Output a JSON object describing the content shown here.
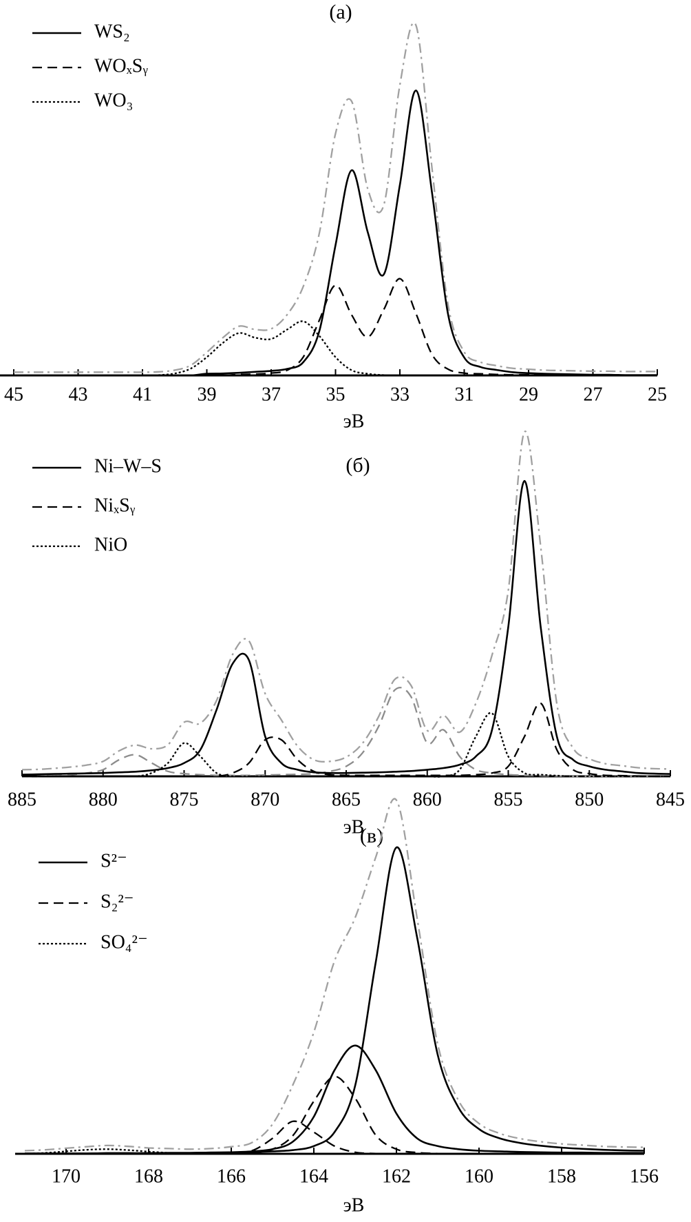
{
  "chart_data": [
    {
      "type": "line",
      "title": "(а)",
      "xlabel": "эВ",
      "legend": "upper left",
      "x": [
        45,
        44.5,
        44,
        43.5,
        43,
        42.5,
        42,
        41.5,
        41,
        40.5,
        40,
        39.5,
        39,
        38.5,
        38,
        37.5,
        37,
        36.5,
        36,
        35.5,
        35,
        34.5,
        34,
        33.5,
        33,
        32.5,
        32,
        31.5,
        31,
        30.5,
        30,
        29.5,
        29,
        28.5,
        28,
        27.5,
        27,
        26.5,
        26,
        25.5,
        25
      ],
      "xlim": [
        45,
        25
      ],
      "xticks": [
        45,
        43,
        41,
        39,
        37,
        35,
        33,
        31,
        29,
        27,
        25
      ],
      "ylim": [
        0,
        110
      ],
      "series": [
        {
          "color": "#a0a0a0",
          "dash": "dashdot",
          "values": [
            1,
            1,
            1,
            1,
            1,
            1,
            1,
            1,
            1,
            1.1,
            1.6,
            3.1,
            7.1,
            11.6,
            15.1,
            14.1,
            14.3,
            18.7,
            27.4,
            43.8,
            74.3,
            84.2,
            57.3,
            52.3,
            89.2,
            107.5,
            63.4,
            21.6,
            7.2,
            4.1,
            3,
            2.2,
            1.9,
            1.6,
            1.5,
            1.4,
            1.3,
            1.3,
            1.2,
            1.2,
            1.2
          ]
        },
        {
          "name": "WS₂",
          "color": "#000000",
          "dash": "solid",
          "values": [
            0,
            0,
            0,
            0,
            0,
            0,
            0,
            0,
            0,
            0,
            0,
            0,
            0.5,
            0.6,
            0.8,
            1.1,
            1.4,
            2.0,
            4.1,
            13.7,
            40,
            63,
            44,
            31,
            58.5,
            87.5,
            56,
            18.7,
            5.5,
            2.6,
            1.7,
            1.0,
            0.7,
            0.5,
            0.4,
            0.3,
            0.2,
            0.2,
            0.1,
            0.1,
            0.1
          ]
        },
        {
          "name": "WOₓSᵧ",
          "color": "#000000",
          "dash": "dashed",
          "values": [
            0,
            0,
            0,
            0,
            0,
            0,
            0,
            0,
            0,
            0,
            0,
            0,
            0,
            0,
            0.3,
            0.4,
            0.7,
            1.6,
            5.7,
            17,
            27.7,
            18.6,
            11.8,
            20.2,
            29.7,
            19,
            6.4,
            1.9,
            0.7,
            0.5,
            0.3,
            0.2,
            0.2,
            0.1,
            0.1,
            0.1,
            0.1,
            0,
            0,
            0,
            0
          ]
        },
        {
          "name": "WO₃",
          "color": "#000000",
          "dash": "dotted",
          "values": [
            0,
            0,
            0,
            0,
            0,
            0,
            0,
            0,
            0,
            0.1,
            0.6,
            2.1,
            5.6,
            10,
            13,
            11.6,
            11.2,
            14.1,
            16.6,
            12.1,
            5.6,
            1.6,
            0.5,
            0.1,
            0,
            0,
            0,
            0,
            0,
            0,
            0,
            0,
            0,
            0,
            0,
            0,
            0,
            0,
            0,
            0,
            0
          ]
        }
      ]
    },
    {
      "type": "line",
      "title": "(б)",
      "xlabel": "эВ",
      "legend": "upper left",
      "x": [
        885,
        884,
        883,
        882,
        881,
        880,
        879,
        878,
        877,
        876,
        875,
        874,
        873,
        872,
        871,
        870,
        869,
        868,
        867,
        866,
        865,
        864,
        863,
        862,
        861,
        860,
        859,
        858,
        857,
        856,
        855,
        854,
        853,
        852,
        851,
        850,
        849,
        848,
        847,
        846,
        845
      ],
      "xlim": [
        885,
        845
      ],
      "xticks": [
        885,
        880,
        875,
        870,
        865,
        860,
        855,
        850,
        845
      ],
      "ylim": [
        0,
        110
      ],
      "series": [
        {
          "color": "#a0a0a0",
          "dash": "dashdot",
          "values": [
            2,
            2.1,
            2.4,
            2.8,
            3.4,
            4.5,
            7.7,
            9.4,
            8.3,
            9.5,
            16.3,
            16,
            22.8,
            36.8,
            40.8,
            24.9,
            17,
            9.1,
            5,
            4.5,
            5.8,
            9.9,
            18,
            29.2,
            27.4,
            13.8,
            18.3,
            13.3,
            22,
            36.5,
            56,
            103.8,
            69.2,
            21.8,
            8.5,
            5.3,
            3.8,
            3.2,
            2.6,
            2.3,
            2.2
          ]
        },
        {
          "color": "#8c8c8c",
          "dash": "dashed",
          "values": [
            0,
            0,
            0.2,
            0.5,
            1,
            2,
            5,
            6.5,
            4,
            1.5,
            0.8,
            0.5,
            0.3,
            0.3,
            0.3,
            0.4,
            0.5,
            0.6,
            0.8,
            1.5,
            3,
            7,
            15,
            26,
            24,
            10,
            14,
            6,
            2,
            1,
            0.5,
            0.3,
            0.2,
            0.1,
            0,
            0,
            0,
            0,
            0,
            0,
            0
          ]
        },
        {
          "name": "Ni–W–S",
          "color": "#000000",
          "dash": "solid",
          "values": [
            0.5,
            0.6,
            0.7,
            0.8,
            0.9,
            1,
            1.2,
            1.4,
            1.8,
            2.5,
            4,
            8,
            20,
            34,
            35,
            12,
            4,
            2,
            1.2,
            1,
            1,
            1.1,
            1.2,
            1.4,
            1.6,
            2,
            2.5,
            3.5,
            6,
            14,
            45,
            89,
            45,
            12,
            5,
            3,
            2,
            1.5,
            1,
            0.8,
            0.7
          ]
        },
        {
          "name": "NiₓSᵧ",
          "color": "#000000",
          "dash": "dashed",
          "values": [
            0,
            0,
            0,
            0,
            0,
            0,
            0,
            0,
            0,
            0,
            0,
            0,
            0,
            1,
            4,
            11,
            11,
            5,
            1.5,
            0.5,
            0.3,
            0.3,
            0.3,
            0.3,
            0.3,
            0.3,
            0.3,
            0.3,
            0.5,
            1,
            3,
            12,
            22,
            8,
            2,
            0.8,
            0.3,
            0.2,
            0.1,
            0,
            0
          ]
        },
        {
          "name": "NiO",
          "color": "#000000",
          "dash": "dotted",
          "values": [
            0,
            0,
            0,
            0,
            0,
            0,
            0,
            0,
            1,
            4,
            10,
            6,
            1,
            0,
            0,
            0,
            0,
            0,
            0,
            0,
            0,
            0,
            0,
            0,
            0,
            0,
            0,
            2,
            12,
            19,
            6,
            1,
            0.5,
            0.2,
            0,
            0,
            0,
            0,
            0,
            0,
            0
          ]
        }
      ]
    },
    {
      "type": "line",
      "title": "(в)",
      "xlabel": "эВ",
      "legend": "upper left",
      "x": [
        171,
        170.5,
        170,
        169.5,
        169,
        168.5,
        168,
        167.5,
        167,
        166.5,
        166,
        165.5,
        165,
        164.5,
        164,
        163.5,
        163,
        162.5,
        162,
        161.5,
        161,
        160.5,
        160,
        159.5,
        159,
        158.5,
        158,
        157.5,
        157,
        156.5,
        156
      ],
      "xlim": [
        171,
        156
      ],
      "xticks": [
        170,
        168,
        166,
        164,
        162,
        160,
        158,
        156
      ],
      "ylim": [
        0,
        120
      ],
      "series": [
        {
          "color": "#a0a0a0",
          "dash": "dashdot",
          "values": [
            1.0,
            1.3,
            1.8,
            2.3,
            2.7,
            2.4,
            1.9,
            1.7,
            1.5,
            1.7,
            2.3,
            3.6,
            9.6,
            22.5,
            39.3,
            62.3,
            76.3,
            95.9,
            114.3,
            76.2,
            35.4,
            17.3,
            9.8,
            6.6,
            4.9,
            3.9,
            3.2,
            2.8,
            2.4,
            2.2,
            2.1
          ]
        },
        {
          "name": "S²⁻",
          "color": "#000000",
          "dash": "solid",
          "values": [
            0.1,
            0.1,
            0.1,
            0.1,
            0.2,
            0.2,
            0.2,
            0.3,
            0.3,
            0.4,
            0.5,
            0.6,
            0.8,
            1.2,
            2.5,
            7,
            22,
            62,
            99,
            70,
            32,
            15,
            8,
            5,
            3.5,
            2.6,
            2,
            1.6,
            1.3,
            1.1,
            1
          ]
        },
        {
          "name": "S²⁻",
          "color": "#000000",
          "dash": "solid",
          "values": [
            0.1,
            0.1,
            0.1,
            0.1,
            0.2,
            0.2,
            0.2,
            0.3,
            0.3,
            0.4,
            0.5,
            0.8,
            1.5,
            4,
            12,
            27,
            35,
            27,
            13,
            5,
            2.5,
            1.5,
            1,
            0.8,
            0.6,
            0.5,
            0.4,
            0.4,
            0.3,
            0.3,
            0.3
          ]
        },
        {
          "name": "S₂²⁻",
          "color": "#000000",
          "dash": "dashed",
          "values": [
            0,
            0,
            0,
            0,
            0,
            0,
            0,
            0,
            0,
            0,
            0.1,
            0.4,
            1.5,
            6,
            17,
            25,
            18,
            6,
            1.5,
            0.4,
            0.1,
            0,
            0,
            0,
            0,
            0,
            0,
            0,
            0,
            0,
            0
          ]
        },
        {
          "name": "S₂²⁻",
          "color": "#000000",
          "dash": "dashed",
          "values": [
            0,
            0,
            0,
            0,
            0,
            0,
            0,
            0,
            0,
            0.1,
            0.4,
            1,
            5,
            10.5,
            7,
            2.5,
            0.5,
            0.1,
            0,
            0,
            0,
            0,
            0,
            0,
            0,
            0,
            0,
            0,
            0,
            0,
            0
          ]
        },
        {
          "name": "SO₄²⁻",
          "color": "#000000",
          "dash": "dotted",
          "values": [
            0,
            0.3,
            0.8,
            1.3,
            1.5,
            1.2,
            0.7,
            0.3,
            0.1,
            0,
            0,
            0,
            0,
            0,
            0,
            0,
            0,
            0,
            0,
            0,
            0,
            0,
            0,
            0,
            0,
            0,
            0,
            0,
            0,
            0,
            0
          ]
        }
      ]
    }
  ]
}
